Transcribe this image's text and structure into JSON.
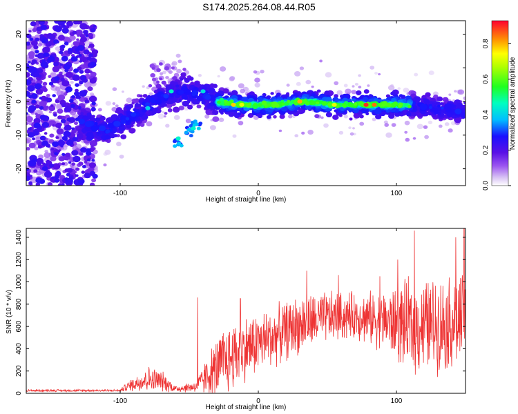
{
  "title": "S174.2025.264.08.44.R05",
  "chart_data": [
    {
      "type": "heatmap",
      "xlabel": "Height of straight line (km)",
      "ylabel": "Frequency (Hz)",
      "xlim": [
        -168,
        150
      ],
      "ylim": [
        -25,
        24
      ],
      "x_ticks": [
        -100,
        0,
        100
      ],
      "y_ticks": [
        -20,
        -10,
        0,
        10,
        20
      ],
      "colorbar": {
        "label": "Normalized spectral amplitude",
        "range": [
          0.0,
          0.93
        ],
        "ticks": [
          0.0,
          0.2,
          0.4,
          0.6,
          0.8
        ],
        "tick_labels": [
          "0.0",
          "0.2",
          "0.4",
          "0.6",
          "0.8"
        ]
      },
      "ridge": [
        {
          "x": -125,
          "y": -6
        },
        {
          "x": -110,
          "y": -9
        },
        {
          "x": -95,
          "y": -5
        },
        {
          "x": -80,
          "y": -1
        },
        {
          "x": -65,
          "y": 2
        },
        {
          "x": -50,
          "y": 3
        },
        {
          "x": -40,
          "y": 2
        },
        {
          "x": -30,
          "y": 0
        },
        {
          "x": -10,
          "y": -1
        },
        {
          "x": 10,
          "y": -1
        },
        {
          "x": 30,
          "y": 0
        },
        {
          "x": 60,
          "y": -1
        },
        {
          "x": 90,
          "y": -1
        },
        {
          "x": 110,
          "y": -1
        },
        {
          "x": 130,
          "y": -2
        },
        {
          "x": 148,
          "y": -3
        }
      ],
      "side_branch": [
        {
          "x": -58,
          "y": -12
        },
        {
          "x": -50,
          "y": -9
        },
        {
          "x": -45,
          "y": -7
        }
      ]
    },
    {
      "type": "line",
      "xlabel": "Height of straight line (km)",
      "ylabel": "SNR (10 * v/v)",
      "xlim": [
        -168,
        150
      ],
      "ylim": [
        0,
        1480
      ],
      "x_ticks": [
        -100,
        0,
        100
      ],
      "y_ticks": [
        0,
        200,
        400,
        600,
        800,
        1000,
        1200,
        1400
      ],
      "color": "#ee3333",
      "envelope": [
        {
          "x": -168,
          "mean": 25,
          "spread": 10
        },
        {
          "x": -100,
          "mean": 25,
          "spread": 10
        },
        {
          "x": -95,
          "mean": 60,
          "spread": 40
        },
        {
          "x": -80,
          "mean": 130,
          "spread": 110
        },
        {
          "x": -70,
          "mean": 110,
          "spread": 90
        },
        {
          "x": -60,
          "mean": 40,
          "spread": 30
        },
        {
          "x": -45,
          "mean": 60,
          "spread": 50
        },
        {
          "x": -35,
          "mean": 180,
          "spread": 200
        },
        {
          "x": -25,
          "mean": 280,
          "spread": 300
        },
        {
          "x": -10,
          "mean": 400,
          "spread": 280
        },
        {
          "x": 10,
          "mean": 500,
          "spread": 250
        },
        {
          "x": 30,
          "mean": 620,
          "spread": 250
        },
        {
          "x": 50,
          "mean": 680,
          "spread": 220
        },
        {
          "x": 70,
          "mean": 700,
          "spread": 200
        },
        {
          "x": 90,
          "mean": 650,
          "spread": 250
        },
        {
          "x": 110,
          "mean": 600,
          "spread": 400
        },
        {
          "x": 130,
          "mean": 620,
          "spread": 400
        },
        {
          "x": 150,
          "mean": 650,
          "spread": 400
        }
      ],
      "spikes": [
        {
          "x": -44,
          "y": 860
        },
        {
          "x": -13,
          "y": 850
        },
        {
          "x": 35,
          "y": 1100
        },
        {
          "x": 58,
          "y": 1060
        },
        {
          "x": 88,
          "y": 1050
        },
        {
          "x": 101,
          "y": 1200
        },
        {
          "x": 113,
          "y": 1460
        },
        {
          "x": 143,
          "y": 1400
        },
        {
          "x": 149,
          "y": 1480
        }
      ]
    }
  ]
}
